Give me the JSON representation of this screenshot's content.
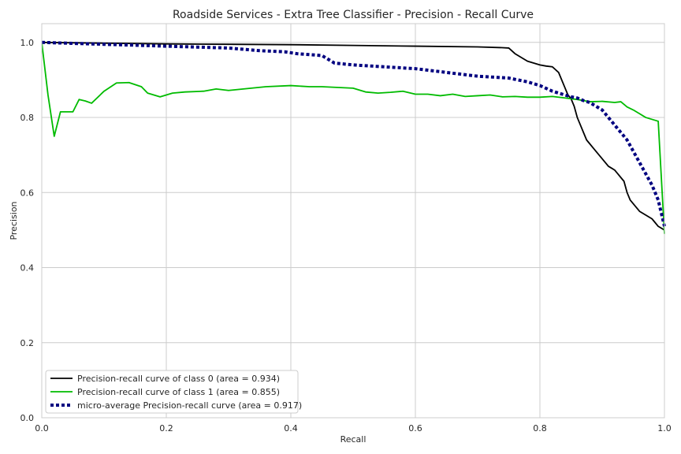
{
  "chart_data": {
    "type": "line",
    "title": "Roadside Services - Extra Tree Classifier - Precision - Recall Curve",
    "xlabel": "Recall",
    "ylabel": "Precision",
    "xlim": [
      0.0,
      1.0
    ],
    "ylim": [
      0.0,
      1.05
    ],
    "xticks": [
      "0.0",
      "0.2",
      "0.4",
      "0.6",
      "0.8",
      "1.0"
    ],
    "yticks": [
      "0.0",
      "0.2",
      "0.4",
      "0.6",
      "0.8",
      "1.0"
    ],
    "grid": true,
    "legend_position": "lower-left",
    "series": [
      {
        "name": "Precision-recall curve of class 0 (area = 0.934)",
        "color": "#000000",
        "style": "solid",
        "x": [
          0.0,
          0.1,
          0.2,
          0.3,
          0.4,
          0.5,
          0.6,
          0.7,
          0.74,
          0.75,
          0.76,
          0.77,
          0.78,
          0.79,
          0.8,
          0.81,
          0.82,
          0.83,
          0.84,
          0.845,
          0.85,
          0.855,
          0.86,
          0.865,
          0.87,
          0.875,
          0.88,
          0.885,
          0.89,
          0.895,
          0.9,
          0.905,
          0.91,
          0.915,
          0.92,
          0.925,
          0.93,
          0.935,
          0.94,
          0.945,
          0.95,
          0.955,
          0.96,
          0.965,
          0.97,
          0.975,
          0.98,
          0.985,
          0.99,
          0.995,
          1.0
        ],
        "y": [
          1.0,
          0.998,
          0.996,
          0.995,
          0.994,
          0.992,
          0.99,
          0.988,
          0.986,
          0.985,
          0.97,
          0.96,
          0.95,
          0.945,
          0.94,
          0.937,
          0.935,
          0.92,
          0.88,
          0.86,
          0.85,
          0.83,
          0.8,
          0.78,
          0.76,
          0.74,
          0.73,
          0.72,
          0.71,
          0.7,
          0.69,
          0.68,
          0.67,
          0.665,
          0.66,
          0.65,
          0.64,
          0.63,
          0.6,
          0.58,
          0.57,
          0.56,
          0.55,
          0.545,
          0.54,
          0.535,
          0.53,
          0.52,
          0.51,
          0.505,
          0.5
        ]
      },
      {
        "name": "Precision-recall curve of class 1 (area = 0.855)",
        "color": "#00bb00",
        "style": "solid",
        "x": [
          0.0,
          0.01,
          0.02,
          0.03,
          0.04,
          0.05,
          0.06,
          0.07,
          0.08,
          0.1,
          0.12,
          0.14,
          0.16,
          0.17,
          0.19,
          0.2,
          0.21,
          0.23,
          0.26,
          0.28,
          0.3,
          0.33,
          0.36,
          0.4,
          0.43,
          0.45,
          0.5,
          0.52,
          0.54,
          0.56,
          0.58,
          0.6,
          0.62,
          0.64,
          0.66,
          0.68,
          0.7,
          0.72,
          0.74,
          0.76,
          0.78,
          0.8,
          0.82,
          0.84,
          0.86,
          0.88,
          0.9,
          0.92,
          0.93,
          0.94,
          0.95,
          0.96,
          0.97,
          0.98,
          0.99,
          1.0
        ],
        "y": [
          1.0,
          0.86,
          0.75,
          0.815,
          0.815,
          0.815,
          0.848,
          0.844,
          0.838,
          0.87,
          0.892,
          0.893,
          0.882,
          0.865,
          0.855,
          0.86,
          0.865,
          0.868,
          0.87,
          0.876,
          0.872,
          0.877,
          0.882,
          0.885,
          0.882,
          0.882,
          0.878,
          0.868,
          0.865,
          0.867,
          0.87,
          0.862,
          0.862,
          0.858,
          0.862,
          0.856,
          0.858,
          0.86,
          0.855,
          0.856,
          0.854,
          0.854,
          0.856,
          0.852,
          0.848,
          0.842,
          0.843,
          0.84,
          0.842,
          0.828,
          0.82,
          0.81,
          0.8,
          0.795,
          0.79,
          0.49
        ]
      },
      {
        "name": "micro-average Precision-recall curve (area = 0.917)",
        "color": "#000080",
        "style": "dotted",
        "x": [
          0.0,
          0.1,
          0.2,
          0.3,
          0.35,
          0.39,
          0.41,
          0.45,
          0.47,
          0.5,
          0.55,
          0.6,
          0.65,
          0.7,
          0.75,
          0.78,
          0.8,
          0.82,
          0.84,
          0.85,
          0.86,
          0.87,
          0.88,
          0.89,
          0.9,
          0.91,
          0.92,
          0.93,
          0.94,
          0.95,
          0.96,
          0.97,
          0.98,
          0.99,
          1.0
        ],
        "y": [
          1.0,
          0.995,
          0.99,
          0.985,
          0.978,
          0.975,
          0.97,
          0.965,
          0.945,
          0.94,
          0.935,
          0.93,
          0.92,
          0.91,
          0.905,
          0.895,
          0.885,
          0.87,
          0.86,
          0.855,
          0.852,
          0.845,
          0.84,
          0.83,
          0.82,
          0.8,
          0.78,
          0.76,
          0.74,
          0.71,
          0.68,
          0.65,
          0.62,
          0.58,
          0.51
        ]
      }
    ]
  }
}
